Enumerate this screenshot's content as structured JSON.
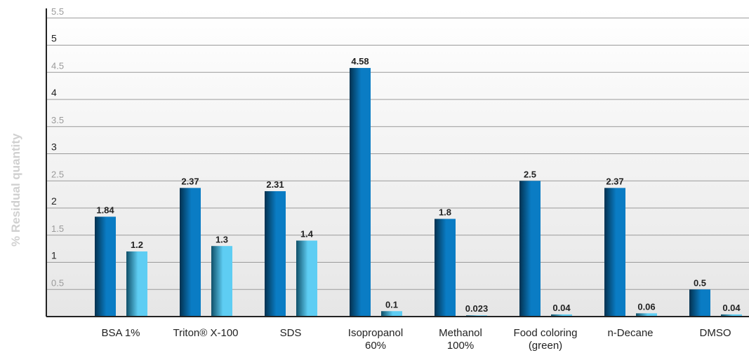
{
  "chart_data": {
    "type": "bar",
    "title": "",
    "xlabel": "",
    "ylabel": "% Residual quantity",
    "ylim": [
      0,
      5.5
    ],
    "yticks": [
      {
        "value": 0.5,
        "label": "0.5"
      },
      {
        "value": 1,
        "label": "1"
      },
      {
        "value": 1.5,
        "label": "1.5"
      },
      {
        "value": 2,
        "label": "2"
      },
      {
        "value": 2.5,
        "label": "2.5"
      },
      {
        "value": 3,
        "label": "3"
      },
      {
        "value": 3.5,
        "label": "3.5"
      },
      {
        "value": 4,
        "label": "4"
      },
      {
        "value": 4.5,
        "label": "4.5"
      },
      {
        "value": 5,
        "label": "5"
      },
      {
        "value": 5.5,
        "label": "5.5"
      }
    ],
    "grid": true,
    "categories": [
      [
        "BSA 1%"
      ],
      [
        "Triton® X-100"
      ],
      [
        "SDS"
      ],
      [
        "Isopropanol",
        "60%"
      ],
      [
        "Methanol",
        "100%"
      ],
      [
        "Food coloring",
        "(green)"
      ],
      [
        "n-Decane"
      ],
      [
        "DMSO"
      ]
    ],
    "series": [
      {
        "values": [
          1.84,
          2.37,
          2.31,
          4.58,
          1.8,
          2.5,
          2.37,
          0.5
        ],
        "labels": [
          "1.84",
          "2.37",
          "2.31",
          "4.58",
          "1.8",
          "2.5",
          "2.37",
          "0.5"
        ],
        "color_light": "#0a7cc4",
        "color_dark": "#03314f"
      },
      {
        "values": [
          1.2,
          1.3,
          1.4,
          0.1,
          0.023,
          0.04,
          0.06,
          0.04
        ],
        "labels": [
          "1.2",
          "1.3",
          "1.4",
          "0.1",
          "0.023",
          "0.04",
          "0.06",
          "0.04"
        ],
        "color_light": "#5ecdf3",
        "color_dark": "#0f4f68"
      }
    ],
    "colors": {
      "axis": "#222222",
      "grid": "#9a9a9a",
      "tick_dark": "#222222",
      "tick_light": "#9a9a9a",
      "ylabel": "#d0d0d0",
      "bar_label": "#222222"
    }
  }
}
